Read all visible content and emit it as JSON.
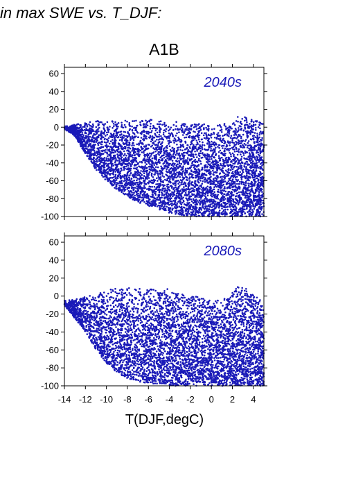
{
  "page": {
    "title": "in max SWE vs. T_DJF:",
    "panel_title": "A1B"
  },
  "chart_data": [
    {
      "type": "scatter",
      "title": "2040s",
      "series": [
        {
          "name": "",
          "color": "#1a1ab8"
        }
      ],
      "xlim": [
        -14,
        5
      ],
      "ylim": [
        -100,
        67
      ],
      "yticks": [
        -100,
        -80,
        -60,
        -40,
        -20,
        0,
        20,
        40,
        60
      ],
      "ytick_labels": [
        "-100",
        "-80",
        "-60",
        "-40",
        "-20",
        "0",
        "20",
        "40",
        "60"
      ],
      "envelope": {
        "x": [
          -14.0,
          -13.0,
          -12.0,
          -11.0,
          -10.0,
          -9.0,
          -8.0,
          -7.0,
          -6.0,
          -5.0,
          -4.0,
          -3.0,
          -2.0,
          -1.0,
          0.0,
          1.0,
          2.0,
          3.0,
          4.0,
          5.0
        ],
        "upper": [
          1,
          3,
          5,
          7,
          9,
          8,
          8,
          9,
          9,
          8,
          8,
          6,
          5,
          4,
          3,
          3,
          8,
          15,
          10,
          5
        ],
        "lower": [
          -2,
          -10,
          -30,
          -48,
          -60,
          -70,
          -78,
          -84,
          -88,
          -92,
          -96,
          -98,
          -100,
          -100,
          -100,
          -100,
          -100,
          -100,
          -100,
          -100
        ]
      },
      "grid": false,
      "legend": "none"
    },
    {
      "type": "scatter",
      "title": "2080s",
      "series": [
        {
          "name": "",
          "color": "#1a1ab8"
        }
      ],
      "xlim": [
        -14,
        5
      ],
      "ylim": [
        -100,
        67
      ],
      "xticks": [
        -14,
        -12,
        -10,
        -8,
        -6,
        -4,
        -2,
        0,
        2,
        4
      ],
      "xtick_labels": [
        "-14",
        "-12",
        "-10",
        "-8",
        "-6",
        "-4",
        "-2",
        "0",
        "2",
        "4"
      ],
      "yticks": [
        -100,
        -80,
        -60,
        -40,
        -20,
        0,
        20,
        40,
        60
      ],
      "ytick_labels": [
        "-100",
        "-80",
        "-60",
        "-40",
        "-20",
        "0",
        "20",
        "40",
        "60"
      ],
      "xlabel": "T(DJF,degC)",
      "envelope": {
        "x": [
          -14.0,
          -13.0,
          -12.0,
          -11.0,
          -10.0,
          -9.0,
          -8.0,
          -7.0,
          -6.0,
          -5.0,
          -4.0,
          -3.0,
          -2.0,
          -1.0,
          0.0,
          1.0,
          2.0,
          3.0,
          4.0,
          5.0
        ],
        "upper": [
          -5,
          -3,
          0,
          3,
          6,
          12,
          10,
          8,
          8,
          8,
          10,
          5,
          2,
          0,
          -2,
          -5,
          5,
          15,
          2,
          -5
        ],
        "lower": [
          -10,
          -25,
          -40,
          -60,
          -75,
          -85,
          -92,
          -95,
          -97,
          -98,
          -100,
          -100,
          -100,
          -100,
          -100,
          -100,
          -100,
          -100,
          -100,
          -100
        ]
      },
      "grid": false,
      "legend": "none"
    }
  ]
}
